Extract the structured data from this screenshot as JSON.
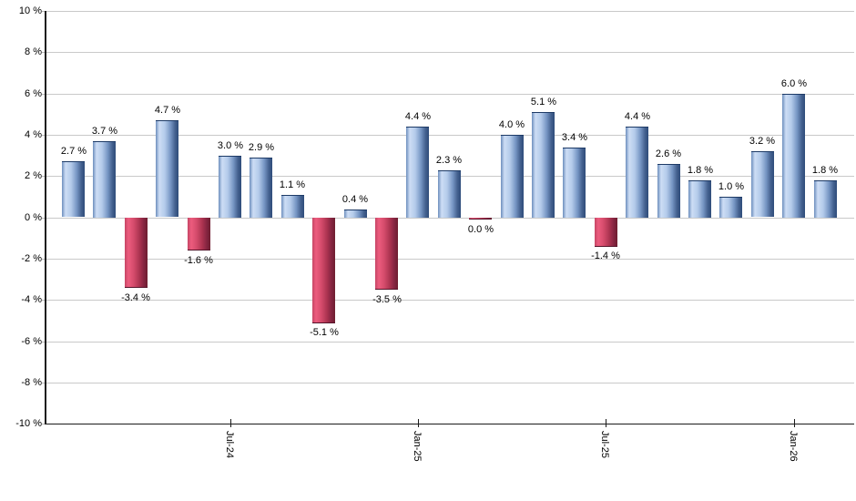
{
  "chart_data": {
    "type": "bar",
    "title": "",
    "xlabel": "",
    "ylabel": "",
    "unit": "%",
    "ylim": [
      -10,
      10
    ],
    "grid": true,
    "legend": "none",
    "y_axis": {
      "ticks": [
        {
          "value": 10,
          "label": "10 %"
        },
        {
          "value": 8,
          "label": "8 %"
        },
        {
          "value": 6,
          "label": "6 %"
        },
        {
          "value": 4,
          "label": "4 %"
        },
        {
          "value": 2,
          "label": "2 %"
        },
        {
          "value": 0,
          "label": "0 %"
        },
        {
          "value": -2,
          "label": "-2 %"
        },
        {
          "value": -4,
          "label": "-4 %"
        },
        {
          "value": -6,
          "label": "-6 %"
        },
        {
          "value": -8,
          "label": "-8 %"
        },
        {
          "value": -10,
          "label": "-10 %"
        }
      ]
    },
    "x_axis": {
      "ticks": [
        {
          "label": "Jul-24",
          "bar_index": 5
        },
        {
          "label": "Jan-25",
          "bar_index": 11
        },
        {
          "label": "Jul-25",
          "bar_index": 17
        },
        {
          "label": "Jan-26",
          "bar_index": 23
        }
      ]
    },
    "bars": [
      {
        "value": 2.7,
        "label": "2.7 %",
        "color": "blue"
      },
      {
        "value": 3.7,
        "label": "3.7 %",
        "color": "blue"
      },
      {
        "value": -3.4,
        "label": "-3.4 %",
        "color": "red"
      },
      {
        "value": 4.7,
        "label": "4.7 %",
        "color": "blue"
      },
      {
        "value": -1.6,
        "label": "-1.6 %",
        "color": "red"
      },
      {
        "value": 3.0,
        "label": "3.0 %",
        "color": "blue"
      },
      {
        "value": 2.9,
        "label": "2.9 %",
        "color": "blue"
      },
      {
        "value": 1.1,
        "label": "1.1 %",
        "color": "blue"
      },
      {
        "value": -5.1,
        "label": "-5.1 %",
        "color": "red"
      },
      {
        "value": 0.4,
        "label": "0.4 %",
        "color": "blue"
      },
      {
        "value": -3.5,
        "label": "-3.5 %",
        "color": "red"
      },
      {
        "value": 4.4,
        "label": "4.4 %",
        "color": "blue"
      },
      {
        "value": 2.3,
        "label": "2.3 %",
        "color": "blue"
      },
      {
        "value": 0.0,
        "label": "0.0 %",
        "color": "red"
      },
      {
        "value": 4.0,
        "label": "4.0 %",
        "color": "blue"
      },
      {
        "value": 5.1,
        "label": "5.1 %",
        "color": "blue"
      },
      {
        "value": 3.4,
        "label": "3.4 %",
        "color": "blue"
      },
      {
        "value": -1.4,
        "label": "-1.4 %",
        "color": "red"
      },
      {
        "value": 4.4,
        "label": "4.4 %",
        "color": "blue"
      },
      {
        "value": 2.6,
        "label": "2.6 %",
        "color": "blue"
      },
      {
        "value": 1.8,
        "label": "1.8 %",
        "color": "blue"
      },
      {
        "value": 1.0,
        "label": "1.0 %",
        "color": "blue"
      },
      {
        "value": 3.2,
        "label": "3.2 %",
        "color": "blue"
      },
      {
        "value": 6.0,
        "label": "6.0 %",
        "color": "blue"
      },
      {
        "value": 1.8,
        "label": "1.8 %",
        "color": "blue"
      }
    ],
    "colors": {
      "blue_gradient": [
        "#6d8ebd",
        "#cdddf5",
        "#b4cbea",
        "#7796c4",
        "#44618f",
        "#2e4c7a"
      ],
      "blue_cap": "#1d3a66",
      "red_gradient": [
        "#c64565",
        "#ec5c7e",
        "#d44b6b",
        "#ab3350",
        "#832440",
        "#6e1e30"
      ],
      "red_cap": "#54142a",
      "grid": "#c9c9c9",
      "axis": "#1a1a1a",
      "text": "#000000",
      "background": "#ffffff"
    }
  }
}
